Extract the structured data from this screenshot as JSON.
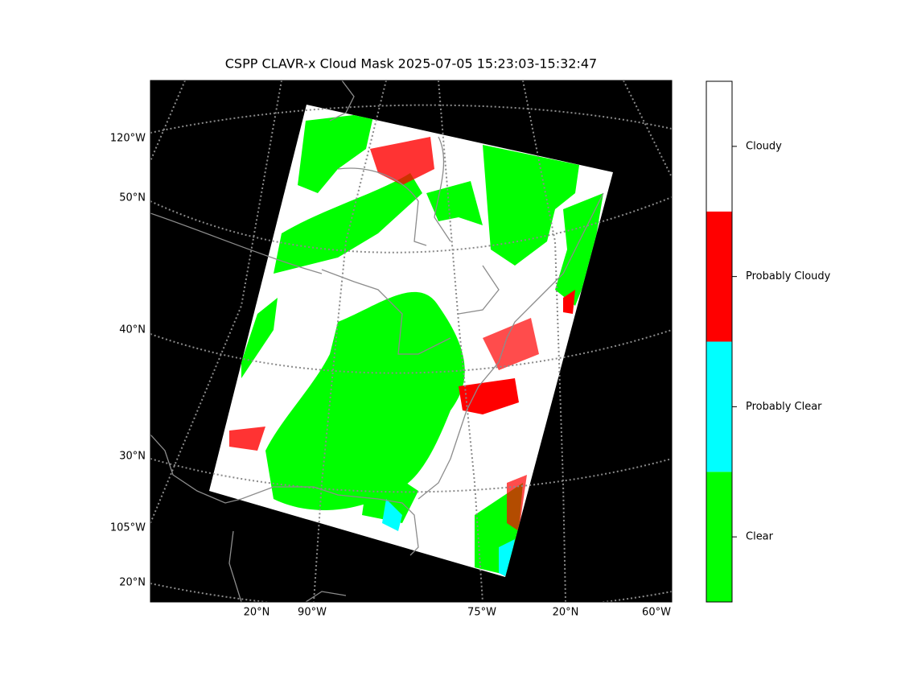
{
  "title": "CSPP CLAVR-x Cloud Mask 2025-07-05 15:23:03-15:32:47",
  "left_labels": [
    "120°W",
    "50°N",
    "40°N",
    "30°N",
    "105°W",
    "20°N"
  ],
  "bottom_labels": [
    "20°N",
    "90°W",
    "75°W",
    "20°N",
    "60°W"
  ],
  "colorbar": [
    {
      "label": "Clear",
      "color": "#00ff00"
    },
    {
      "label": "Probably Clear",
      "color": "#00ffff"
    },
    {
      "label": "Probably Cloudy",
      "color": "#ff0000"
    },
    {
      "label": "Cloudy",
      "color": "#ffffff"
    }
  ]
}
